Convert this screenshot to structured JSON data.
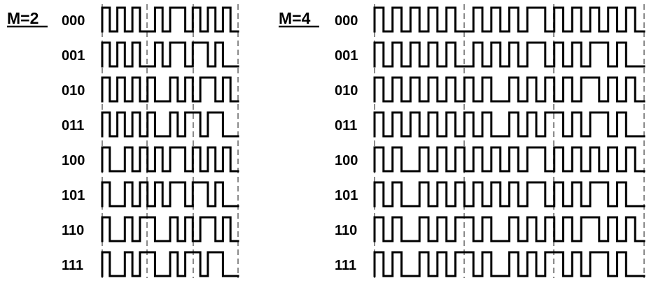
{
  "panels": [
    {
      "title": "M=2",
      "segments": 3,
      "rows": [
        {
          "label": "000",
          "bits": [
            1,
            0,
            1,
            0,
            1,
            0,
            0,
            1,
            0,
            1,
            1,
            0,
            1,
            0,
            1,
            0,
            1,
            0
          ]
        },
        {
          "label": "001",
          "bits": [
            1,
            0,
            1,
            0,
            1,
            0,
            0,
            1,
            0,
            1,
            1,
            0,
            1,
            1,
            0,
            1,
            0,
            0
          ]
        },
        {
          "label": "010",
          "bits": [
            1,
            0,
            1,
            0,
            1,
            0,
            1,
            0,
            0,
            1,
            0,
            1,
            0,
            1,
            1,
            0,
            1,
            0
          ]
        },
        {
          "label": "011",
          "bits": [
            1,
            0,
            1,
            0,
            1,
            0,
            1,
            0,
            0,
            1,
            0,
            1,
            1,
            0,
            1,
            1,
            0,
            0
          ]
        },
        {
          "label": "100",
          "bits": [
            1,
            0,
            0,
            1,
            0,
            1,
            0,
            1,
            0,
            1,
            1,
            0,
            1,
            0,
            1,
            0,
            1,
            0
          ]
        },
        {
          "label": "101",
          "bits": [
            1,
            0,
            0,
            1,
            0,
            1,
            0,
            1,
            0,
            1,
            1,
            0,
            1,
            1,
            0,
            1,
            0,
            0
          ]
        },
        {
          "label": "110",
          "bits": [
            1,
            0,
            0,
            1,
            0,
            1,
            1,
            0,
            0,
            1,
            0,
            1,
            0,
            1,
            1,
            0,
            1,
            0
          ]
        },
        {
          "label": "111",
          "bits": [
            1,
            0,
            0,
            1,
            0,
            1,
            1,
            0,
            0,
            1,
            0,
            1,
            1,
            0,
            1,
            1,
            0,
            0
          ]
        }
      ]
    },
    {
      "title": "M=4",
      "segments": 3,
      "rows": [
        {
          "label": "000",
          "bits": [
            1,
            0,
            1,
            0,
            1,
            0,
            1,
            0,
            1,
            0,
            0,
            1,
            0,
            1,
            0,
            1,
            0,
            1,
            1,
            0,
            1,
            0,
            1,
            0,
            1,
            0,
            1,
            0,
            1,
            0
          ]
        },
        {
          "label": "001",
          "bits": [
            1,
            0,
            1,
            0,
            1,
            0,
            1,
            0,
            1,
            0,
            0,
            1,
            0,
            1,
            0,
            1,
            0,
            1,
            1,
            0,
            1,
            0,
            1,
            0,
            1,
            1,
            0,
            1,
            0,
            0
          ]
        },
        {
          "label": "010",
          "bits": [
            1,
            0,
            1,
            0,
            1,
            0,
            1,
            0,
            1,
            0,
            1,
            0,
            1,
            0,
            0,
            1,
            0,
            1,
            0,
            1,
            0,
            1,
            0,
            1,
            1,
            0,
            1,
            0,
            1,
            0
          ]
        },
        {
          "label": "011",
          "bits": [
            1,
            0,
            1,
            0,
            1,
            0,
            1,
            0,
            1,
            0,
            1,
            0,
            1,
            0,
            0,
            1,
            0,
            1,
            0,
            1,
            1,
            0,
            1,
            0,
            1,
            1,
            0,
            1,
            0,
            0
          ]
        },
        {
          "label": "100",
          "bits": [
            1,
            0,
            1,
            0,
            0,
            1,
            0,
            1,
            0,
            1,
            0,
            1,
            0,
            1,
            0,
            1,
            0,
            1,
            1,
            0,
            1,
            0,
            1,
            0,
            1,
            0,
            1,
            0,
            1,
            0
          ]
        },
        {
          "label": "101",
          "bits": [
            1,
            0,
            1,
            0,
            0,
            1,
            0,
            1,
            0,
            1,
            0,
            1,
            0,
            1,
            0,
            1,
            0,
            1,
            1,
            0,
            1,
            0,
            1,
            0,
            1,
            1,
            0,
            1,
            0,
            0
          ]
        },
        {
          "label": "110",
          "bits": [
            1,
            0,
            1,
            0,
            0,
            1,
            0,
            1,
            0,
            1,
            1,
            0,
            1,
            0,
            0,
            1,
            0,
            1,
            0,
            1,
            0,
            1,
            0,
            1,
            1,
            0,
            1,
            0,
            1,
            0
          ]
        },
        {
          "label": "111",
          "bits": [
            1,
            0,
            1,
            0,
            0,
            1,
            0,
            1,
            0,
            1,
            1,
            0,
            1,
            0,
            0,
            1,
            0,
            1,
            0,
            1,
            1,
            0,
            1,
            0,
            1,
            1,
            0,
            1,
            0,
            0
          ]
        }
      ]
    }
  ],
  "colors": {
    "waveform": "#000000",
    "segment_boundary": "#8a8a8a"
  }
}
